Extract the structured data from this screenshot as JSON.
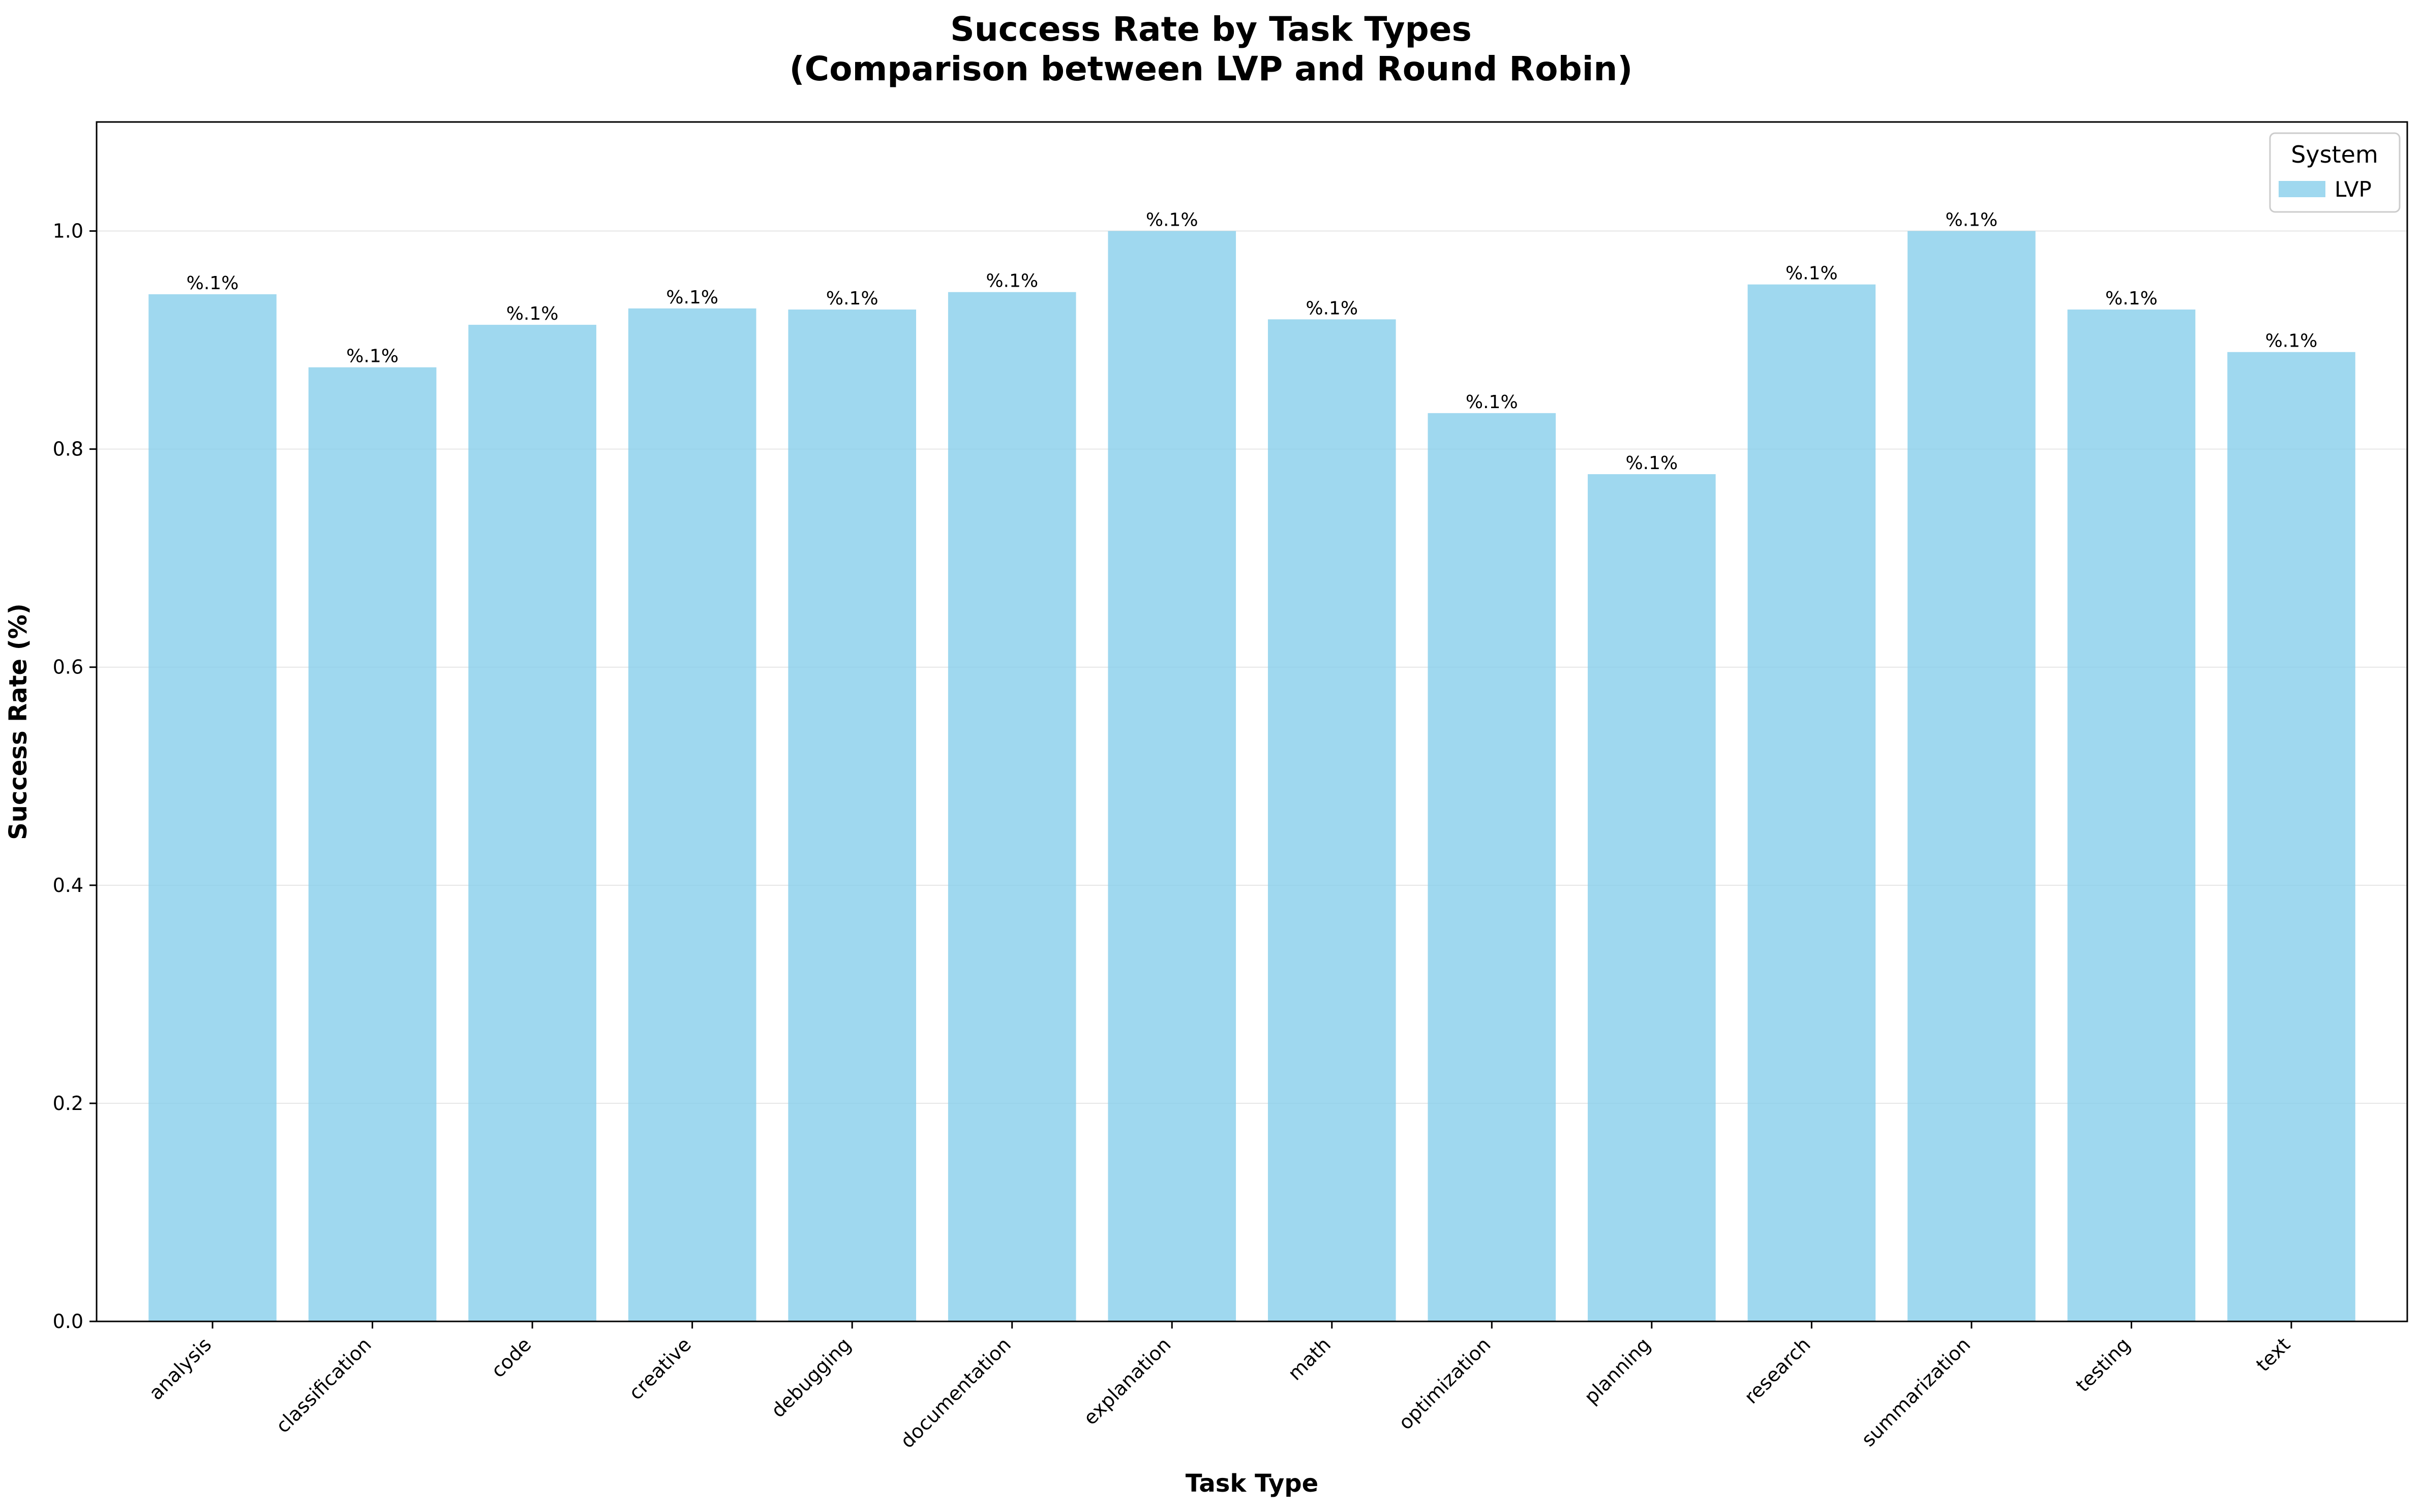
{
  "chart_data": {
    "type": "bar",
    "title": "Success Rate by Task Types",
    "subtitle": "(Comparison between LVP and Round Robin)",
    "xlabel": "Task Type",
    "ylabel": "Success Rate (%)",
    "categories": [
      "analysis",
      "classification",
      "code",
      "creative",
      "debugging",
      "documentation",
      "explanation",
      "math",
      "optimization",
      "planning",
      "research",
      "summarization",
      "testing",
      "text"
    ],
    "series": [
      {
        "name": "LVP",
        "color": "#87ceeb",
        "values": [
          0.942,
          0.875,
          0.914,
          0.929,
          0.928,
          0.944,
          1.0,
          0.919,
          0.833,
          0.777,
          0.951,
          1.0,
          0.928,
          0.889
        ],
        "data_labels": [
          "%.1%",
          "%.1%",
          "%.1%",
          "%.1%",
          "%.1%",
          "%.1%",
          "%.1%",
          "%.1%",
          "%.1%",
          "%.1%",
          "%.1%",
          "%.1%",
          "%.1%",
          "%.1%"
        ]
      }
    ],
    "ylim": [
      0,
      1.1
    ],
    "yticks": [
      0.0,
      0.2,
      0.4,
      0.6,
      0.8,
      1.0
    ],
    "ytick_labels": [
      "0.0",
      "0.2",
      "0.4",
      "0.6",
      "0.8",
      "1.0"
    ],
    "grid": "horizontal",
    "legend": {
      "title": "System",
      "placement": "top-right"
    }
  }
}
